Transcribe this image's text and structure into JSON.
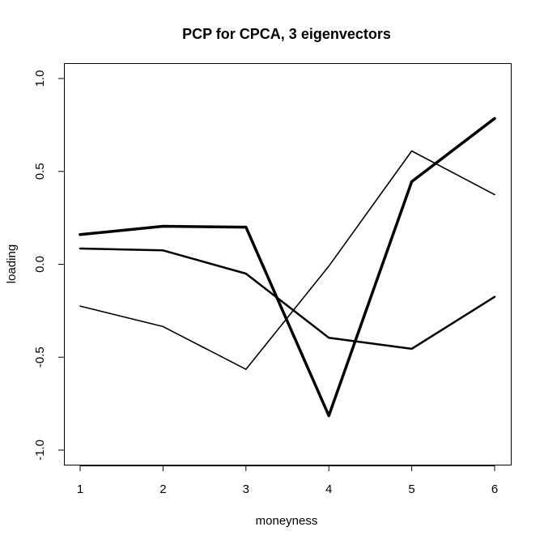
{
  "chart_data": {
    "type": "line",
    "title": "PCP for CPCA, 3 eigenvectors",
    "xlabel": "moneyness",
    "ylabel": "loading",
    "x": [
      1,
      2,
      3,
      4,
      5,
      6
    ],
    "xlim": [
      1,
      6
    ],
    "ylim": [
      -1.0,
      1.0
    ],
    "x_ticks": [
      "1",
      "2",
      "3",
      "4",
      "5",
      "6"
    ],
    "y_ticks": [
      "-1.0",
      "-0.5",
      "0.0",
      "0.5",
      "1.0"
    ],
    "y_tick_values": [
      -1.0,
      -0.5,
      0.0,
      0.5,
      1.0
    ],
    "grid": false,
    "legend": "none",
    "line_color": "#000000",
    "series": [
      {
        "values": [
          0.16,
          0.205,
          0.2,
          -0.815,
          0.445,
          0.785
        ],
        "line_width": 3.5
      },
      {
        "values": [
          0.085,
          0.075,
          -0.05,
          -0.395,
          -0.455,
          -0.175
        ],
        "line_width": 2.5
      },
      {
        "values": [
          -0.225,
          -0.335,
          -0.565,
          -0.01,
          0.61,
          0.375
        ],
        "line_width": 1.6
      }
    ]
  }
}
